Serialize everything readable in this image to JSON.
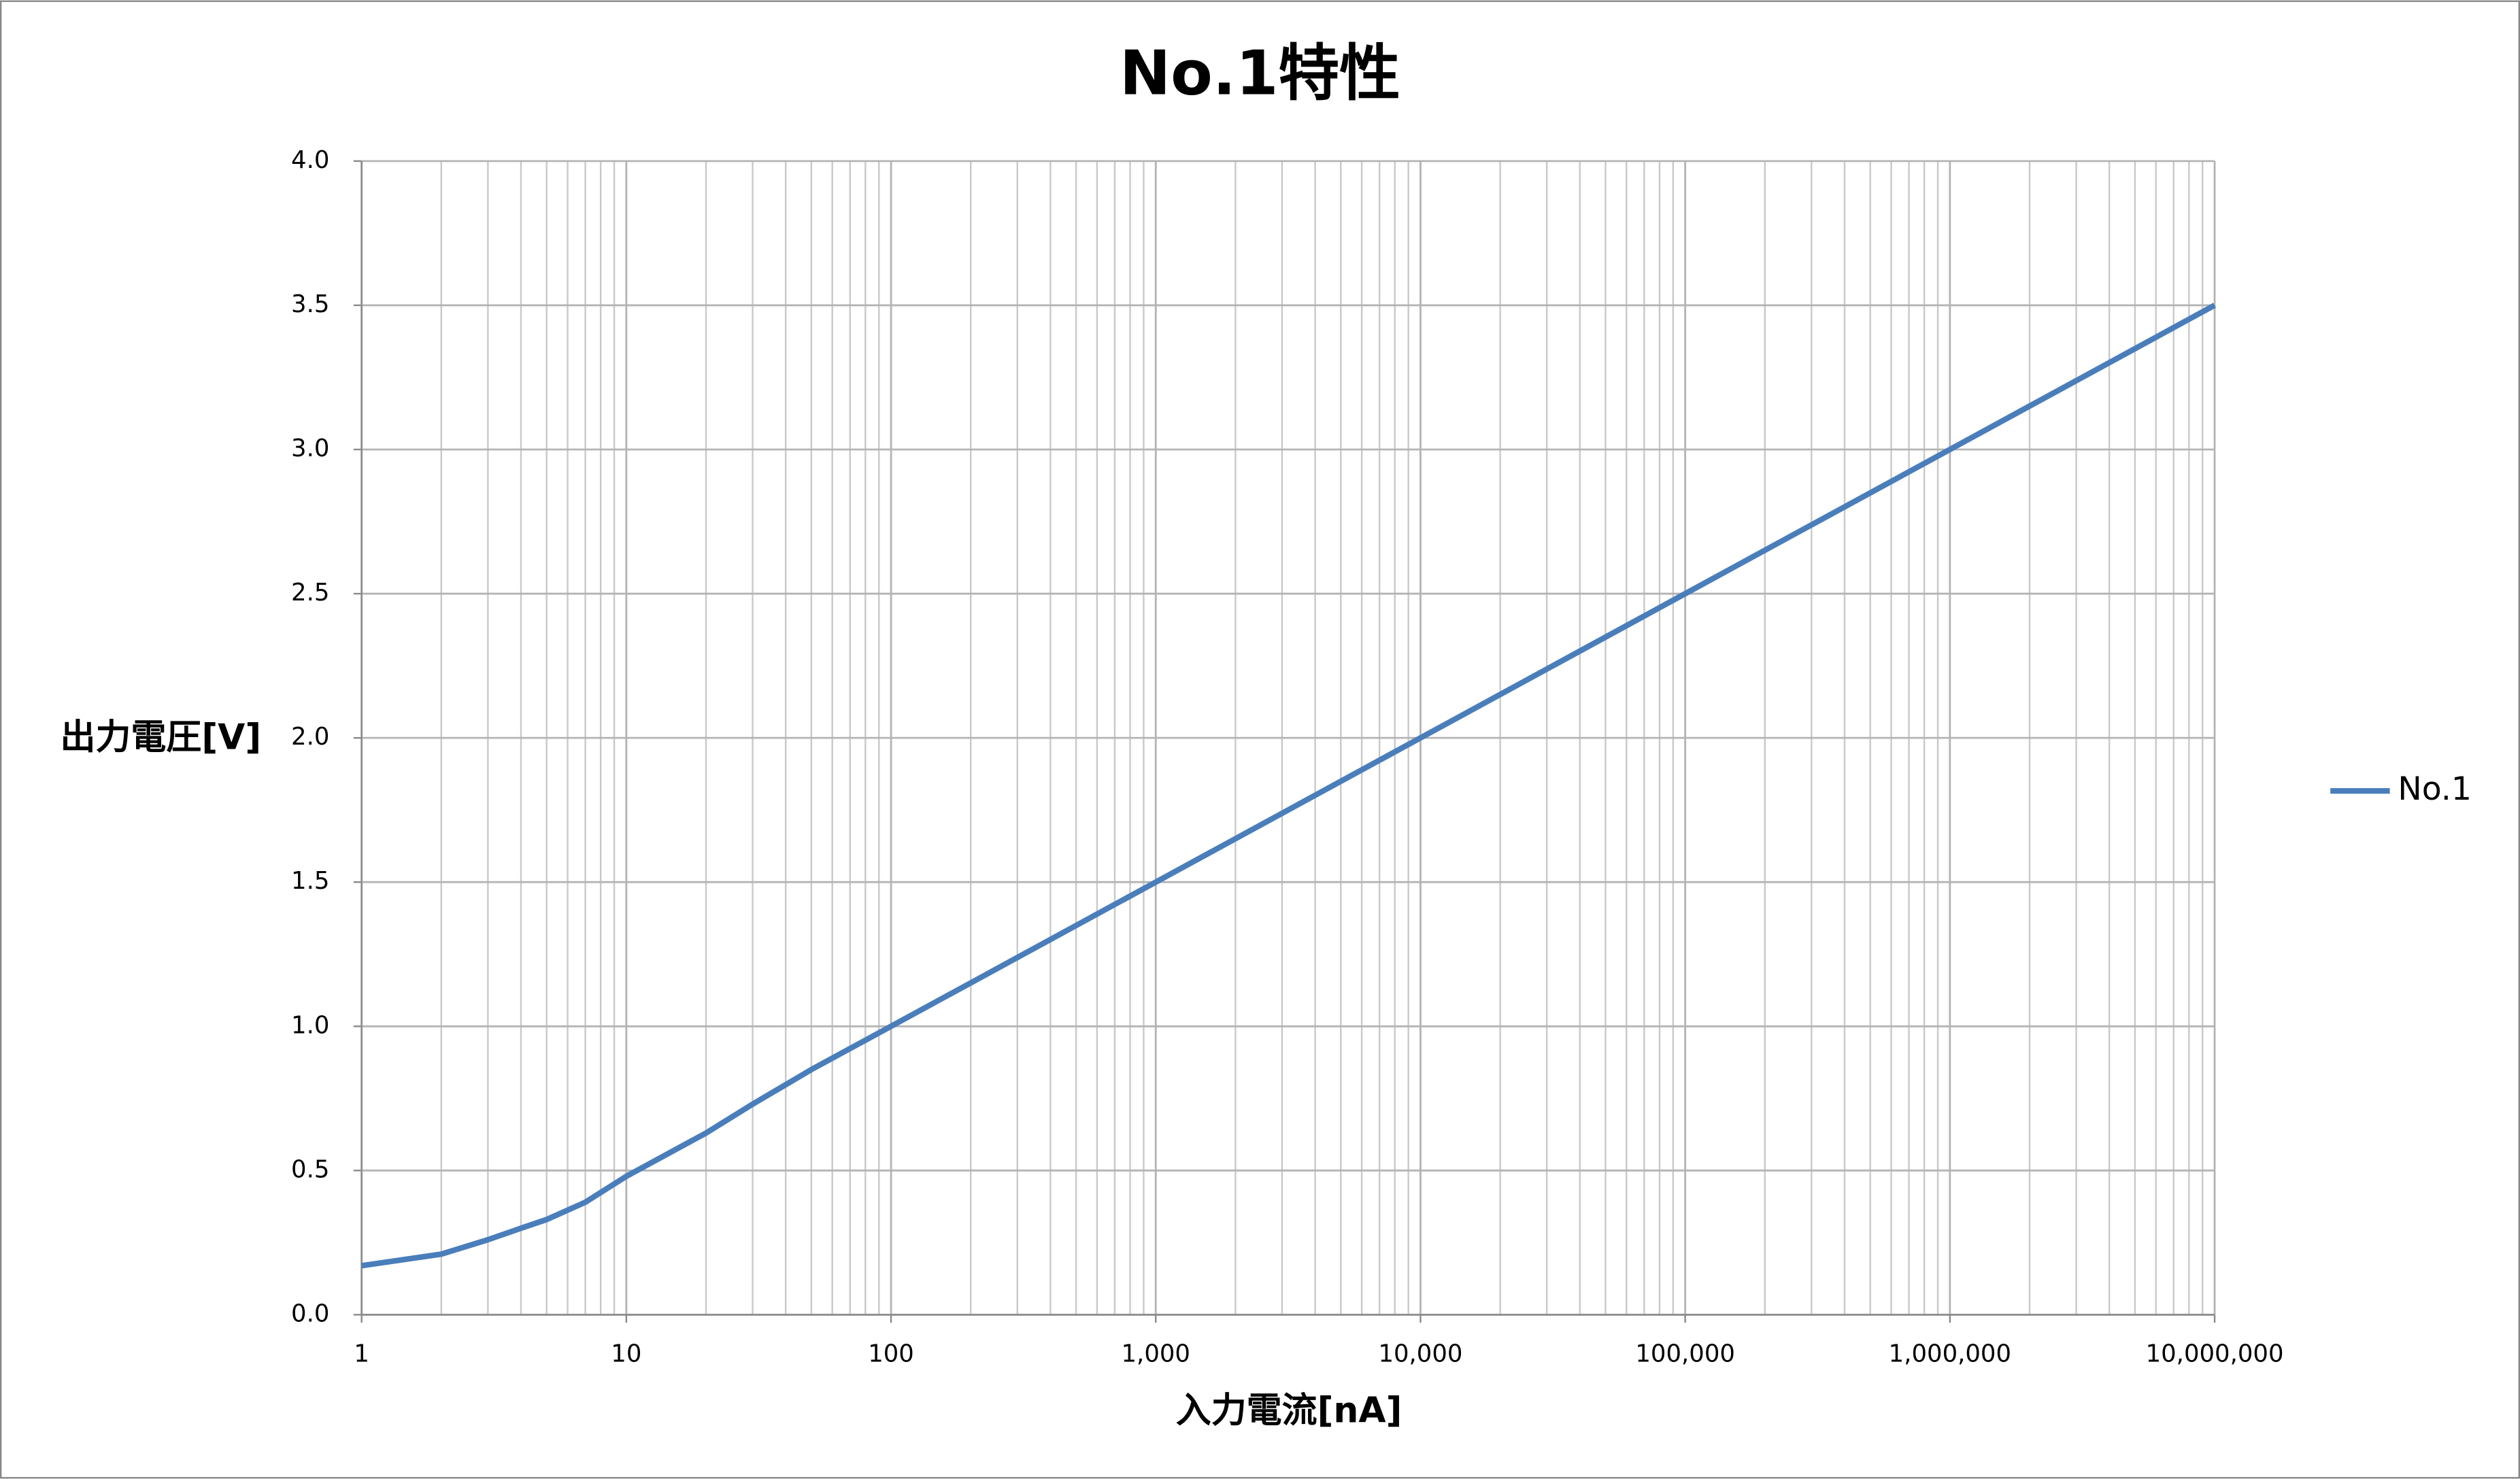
{
  "chart_data": {
    "type": "line",
    "title": "No.1特性",
    "x_label": "入力電流[nA]",
    "y_label": "出力電圧[V]",
    "x": [
      1,
      2,
      3,
      4,
      5,
      7,
      10,
      20,
      30,
      50,
      100,
      1000,
      10000,
      100000,
      1000000,
      10000000
    ],
    "series": [
      {
        "name": "No.1",
        "color": "#4a7ebb",
        "values": [
          0.17,
          0.21,
          0.26,
          0.3,
          0.33,
          0.39,
          0.48,
          0.63,
          0.73,
          0.85,
          1.0,
          1.5,
          2.0,
          2.5,
          3.0,
          3.5
        ]
      }
    ],
    "log_x": true,
    "xlim": [
      1,
      10000000
    ],
    "xticks": [
      1,
      10,
      100,
      {
        "value": 1000,
        "label": "1,000"
      },
      {
        "value": 10000,
        "label": "10,000"
      },
      {
        "value": 100000,
        "label": "100,000"
      },
      {
        "value": 1000000,
        "label": "1,000,000"
      },
      {
        "value": 10000000,
        "label": "10,000,000"
      }
    ],
    "xminorticks": [
      2,
      3,
      4,
      5,
      6,
      7,
      8,
      9,
      20,
      30,
      40,
      50,
      60,
      70,
      80,
      90,
      200,
      300,
      400,
      500,
      600,
      700,
      800,
      900,
      2000,
      3000,
      4000,
      5000,
      6000,
      7000,
      8000,
      9000,
      20000,
      30000,
      40000,
      50000,
      60000,
      70000,
      80000,
      90000,
      200000,
      300000,
      400000,
      500000,
      600000,
      700000,
      800000,
      900000,
      2000000,
      3000000,
      4000000,
      5000000,
      6000000,
      7000000,
      8000000,
      9000000
    ],
    "ylim": [
      0,
      4
    ],
    "yticks": [
      {
        "value": 0,
        "label": "0.0"
      },
      0.5,
      {
        "value": 1,
        "label": "1.0"
      },
      1.5,
      {
        "value": 2,
        "label": "2.0"
      },
      2.5,
      {
        "value": 3,
        "label": "3.0"
      },
      3.5,
      {
        "value": 4,
        "label": "4.0"
      }
    ],
    "grid": true,
    "legend": "right"
  }
}
